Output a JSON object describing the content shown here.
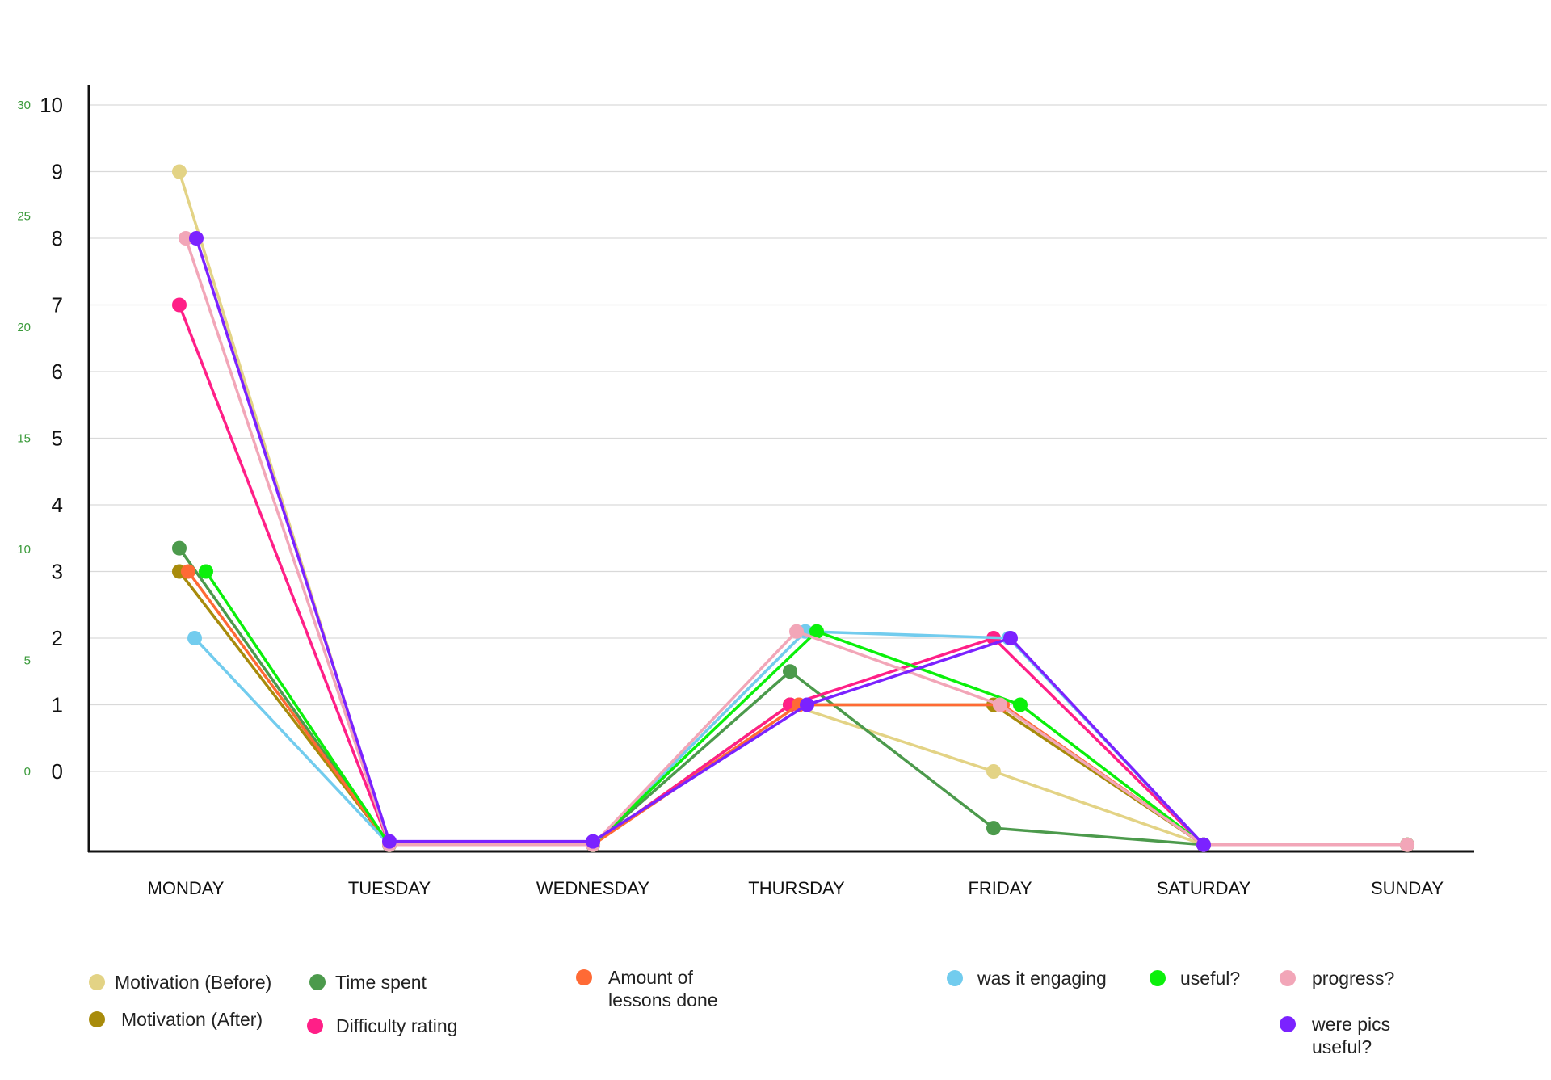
{
  "chart_data": {
    "type": "line",
    "categories": [
      "MONDAY",
      "TUESDAY",
      "WEDNESDAY",
      "THURSDAY",
      "FRIDAY",
      "SATURDAY",
      "SUNDAY"
    ],
    "ylim": [
      -1.1,
      10
    ],
    "y_ticks": [
      "0",
      "1",
      "2",
      "3",
      "4",
      "5",
      "6",
      "7",
      "8",
      "9",
      "10"
    ],
    "y_ticks_secondary": [
      "0",
      "5",
      "10",
      "15",
      "20",
      "25",
      "30"
    ],
    "grid": true,
    "legend_position": "bottom",
    "series": [
      {
        "name": "Motivation (Before)",
        "color": "#e3d385",
        "values": [
          9,
          -1.1,
          -1.1,
          1,
          0,
          -1.1,
          null
        ]
      },
      {
        "name": "Motivation (After)",
        "color": "#a88b0b",
        "values": [
          3,
          -1.1,
          -1.1,
          1,
          1,
          -1.1,
          null
        ]
      },
      {
        "name": "Time spent",
        "color": "#4c9a4c",
        "values": [
          3.35,
          -1.1,
          -1.1,
          1.5,
          -0.85,
          -1.1,
          -1.1
        ]
      },
      {
        "name": "Difficulty rating",
        "color": "#ff1f87",
        "values": [
          7,
          -1.1,
          -1.1,
          1,
          2,
          -1.1,
          -1.1
        ]
      },
      {
        "name": "Amount of lessons done",
        "color": "#ff6a35",
        "values": [
          3,
          -1.1,
          -1.1,
          1,
          1,
          -1.1,
          null
        ]
      },
      {
        "name": "was it engaging",
        "color": "#72ccee",
        "values": [
          2,
          -1.1,
          -1.1,
          2.1,
          2,
          -1.1,
          null
        ]
      },
      {
        "name": "useful?",
        "color": "#0bf00b",
        "values": [
          3,
          -1.1,
          -1.1,
          2.1,
          1,
          -1.1,
          -1.1
        ]
      },
      {
        "name": "progress?",
        "color": "#f2a6b8",
        "values": [
          8,
          -1.1,
          -1.1,
          2.1,
          1,
          -1.1,
          -1.1
        ]
      },
      {
        "name": "were pics useful?",
        "color": "#7b22ff",
        "values": [
          8,
          -1.05,
          -1.05,
          1,
          2,
          -1.1,
          null
        ]
      }
    ]
  },
  "legend": [
    {
      "label": "Motivation (Before)",
      "color": "#e3d385"
    },
    {
      "label": "Motivation (After)",
      "color": "#a88b0b"
    },
    {
      "label": "Time spent",
      "color": "#4c9a4c"
    },
    {
      "label": "Difficulty rating",
      "color": "#ff1f87"
    },
    {
      "label": "Amount of\nlessons done",
      "color": "#ff6a35"
    },
    {
      "label": "was it engaging",
      "color": "#72ccee"
    },
    {
      "label": "useful?",
      "color": "#0bf00b"
    },
    {
      "label": "progress?",
      "color": "#f2a6b8"
    },
    {
      "label": "were pics\nuseful?",
      "color": "#7b22ff"
    }
  ]
}
